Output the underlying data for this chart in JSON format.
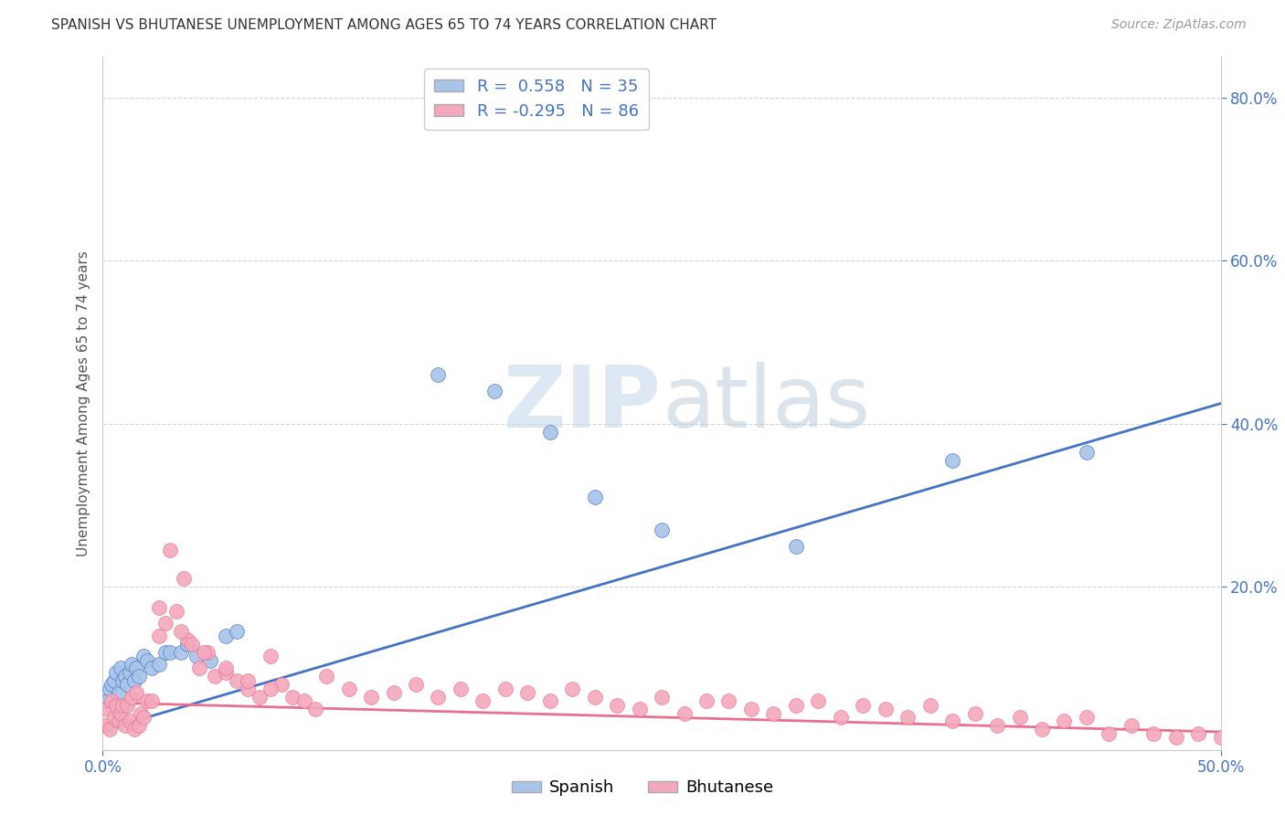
{
  "title": "SPANISH VS BHUTANESE UNEMPLOYMENT AMONG AGES 65 TO 74 YEARS CORRELATION CHART",
  "source": "Source: ZipAtlas.com",
  "ylabel": "Unemployment Among Ages 65 to 74 years",
  "xlim": [
    0.0,
    0.5
  ],
  "ylim": [
    0.0,
    0.85
  ],
  "xticks": [
    0.0,
    0.5
  ],
  "xtick_labels": [
    "0.0%",
    "50.0%"
  ],
  "yticks_right": [
    0.2,
    0.4,
    0.6,
    0.8
  ],
  "ytick_labels_right": [
    "20.0%",
    "40.0%",
    "60.0%",
    "80.0%"
  ],
  "yticks_left": [],
  "ytick_labels_left": [],
  "spanish_color": "#A8C4E8",
  "bhutanese_color": "#F4A8BC",
  "spanish_line_color": "#4472C4",
  "bhutanese_line_color": "#E87090",
  "spanish_R": 0.558,
  "spanish_N": 35,
  "bhutanese_R": -0.295,
  "bhutanese_N": 86,
  "watermark_zip": "ZIP",
  "watermark_atlas": "atlas",
  "background_color": "#FFFFFF",
  "grid_color": "#CCCCCC",
  "spanish_x": [
    0.002,
    0.003,
    0.004,
    0.005,
    0.006,
    0.007,
    0.008,
    0.009,
    0.01,
    0.011,
    0.012,
    0.013,
    0.014,
    0.015,
    0.016,
    0.018,
    0.02,
    0.022,
    0.025,
    0.028,
    0.03,
    0.035,
    0.038,
    0.042,
    0.048,
    0.055,
    0.06,
    0.15,
    0.175,
    0.2,
    0.22,
    0.25,
    0.31,
    0.38,
    0.44
  ],
  "spanish_y": [
    0.06,
    0.075,
    0.08,
    0.085,
    0.095,
    0.07,
    0.1,
    0.085,
    0.09,
    0.08,
    0.095,
    0.105,
    0.085,
    0.1,
    0.09,
    0.115,
    0.11,
    0.1,
    0.105,
    0.12,
    0.12,
    0.12,
    0.13,
    0.115,
    0.11,
    0.14,
    0.145,
    0.46,
    0.44,
    0.39,
    0.31,
    0.27,
    0.25,
    0.355,
    0.365
  ],
  "bhutanese_x": [
    0.001,
    0.002,
    0.003,
    0.004,
    0.005,
    0.006,
    0.007,
    0.008,
    0.009,
    0.01,
    0.011,
    0.012,
    0.013,
    0.014,
    0.015,
    0.016,
    0.017,
    0.018,
    0.02,
    0.022,
    0.025,
    0.028,
    0.03,
    0.033,
    0.036,
    0.038,
    0.04,
    0.043,
    0.047,
    0.05,
    0.055,
    0.06,
    0.065,
    0.07,
    0.075,
    0.08,
    0.085,
    0.09,
    0.095,
    0.1,
    0.11,
    0.12,
    0.13,
    0.14,
    0.15,
    0.16,
    0.17,
    0.18,
    0.19,
    0.2,
    0.21,
    0.22,
    0.23,
    0.24,
    0.25,
    0.26,
    0.27,
    0.28,
    0.29,
    0.3,
    0.31,
    0.32,
    0.33,
    0.34,
    0.35,
    0.36,
    0.37,
    0.38,
    0.39,
    0.4,
    0.41,
    0.42,
    0.43,
    0.44,
    0.45,
    0.46,
    0.47,
    0.48,
    0.49,
    0.5,
    0.025,
    0.035,
    0.045,
    0.055,
    0.065,
    0.075
  ],
  "bhutanese_y": [
    0.03,
    0.05,
    0.025,
    0.06,
    0.04,
    0.055,
    0.035,
    0.045,
    0.055,
    0.03,
    0.055,
    0.035,
    0.065,
    0.025,
    0.07,
    0.03,
    0.045,
    0.04,
    0.06,
    0.06,
    0.175,
    0.155,
    0.245,
    0.17,
    0.21,
    0.135,
    0.13,
    0.1,
    0.12,
    0.09,
    0.095,
    0.085,
    0.075,
    0.065,
    0.115,
    0.08,
    0.065,
    0.06,
    0.05,
    0.09,
    0.075,
    0.065,
    0.07,
    0.08,
    0.065,
    0.075,
    0.06,
    0.075,
    0.07,
    0.06,
    0.075,
    0.065,
    0.055,
    0.05,
    0.065,
    0.045,
    0.06,
    0.06,
    0.05,
    0.045,
    0.055,
    0.06,
    0.04,
    0.055,
    0.05,
    0.04,
    0.055,
    0.035,
    0.045,
    0.03,
    0.04,
    0.025,
    0.035,
    0.04,
    0.02,
    0.03,
    0.02,
    0.015,
    0.02,
    0.015,
    0.14,
    0.145,
    0.12,
    0.1,
    0.085,
    0.075
  ],
  "sp_line_x0": 0.0,
  "sp_line_y0": 0.024,
  "sp_line_x1": 0.5,
  "sp_line_y1": 0.425,
  "bh_line_x0": 0.0,
  "bh_line_y0": 0.058,
  "bh_line_x1": 0.5,
  "bh_line_y1": 0.022
}
